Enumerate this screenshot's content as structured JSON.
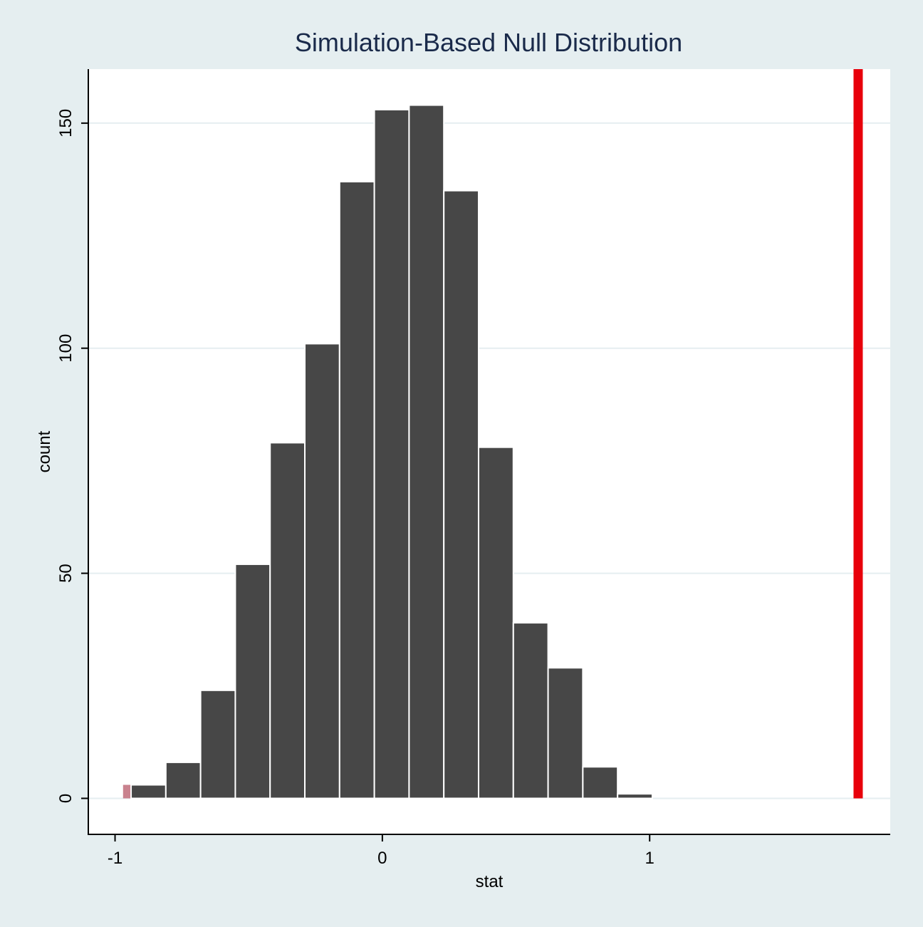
{
  "chart_data": {
    "type": "bar",
    "title": "Simulation-Based Null Distribution",
    "xlabel": "stat",
    "ylabel": "count",
    "xlim": [
      -1.1,
      1.9
    ],
    "ylim": [
      -8,
      162
    ],
    "x_ticks": [
      {
        "value": -1,
        "label": "-1"
      },
      {
        "value": 0,
        "label": "0"
      },
      {
        "value": 1,
        "label": "1"
      }
    ],
    "y_ticks": [
      {
        "value": 0,
        "label": "0"
      },
      {
        "value": 50,
        "label": "50"
      },
      {
        "value": 100,
        "label": "100"
      },
      {
        "value": 150,
        "label": "150"
      }
    ],
    "grid": true,
    "bins": [
      {
        "x0": -0.94,
        "x1": -0.81,
        "count": 3
      },
      {
        "x0": -0.81,
        "x1": -0.68,
        "count": 8
      },
      {
        "x0": -0.68,
        "x1": -0.55,
        "count": 24
      },
      {
        "x0": -0.55,
        "x1": -0.42,
        "count": 52
      },
      {
        "x0": -0.42,
        "x1": -0.29,
        "count": 79
      },
      {
        "x0": -0.29,
        "x1": -0.16,
        "count": 101
      },
      {
        "x0": -0.16,
        "x1": -0.03,
        "count": 137
      },
      {
        "x0": -0.03,
        "x1": 0.1,
        "count": 153
      },
      {
        "x0": 0.1,
        "x1": 0.23,
        "count": 154
      },
      {
        "x0": 0.23,
        "x1": 0.36,
        "count": 135
      },
      {
        "x0": 0.36,
        "x1": 0.49,
        "count": 78
      },
      {
        "x0": 0.49,
        "x1": 0.62,
        "count": 39
      },
      {
        "x0": 0.62,
        "x1": 0.75,
        "count": 29
      },
      {
        "x0": 0.75,
        "x1": 0.88,
        "count": 7
      },
      {
        "x0": 0.88,
        "x1": 1.01,
        "count": 1
      }
    ],
    "shaded_region": {
      "x0": -0.97,
      "x1": -0.94,
      "count": 3,
      "color": "#c9828e"
    },
    "observed_stat": {
      "value": 1.78,
      "color": "#e8000b"
    },
    "bar_color": "#474747",
    "bar_edge_color": "#ffffff",
    "grid_color": "#e5eef0",
    "panel_color": "#ffffff",
    "background_color": "#e5eef0",
    "title_color": "#1a2a4a"
  }
}
